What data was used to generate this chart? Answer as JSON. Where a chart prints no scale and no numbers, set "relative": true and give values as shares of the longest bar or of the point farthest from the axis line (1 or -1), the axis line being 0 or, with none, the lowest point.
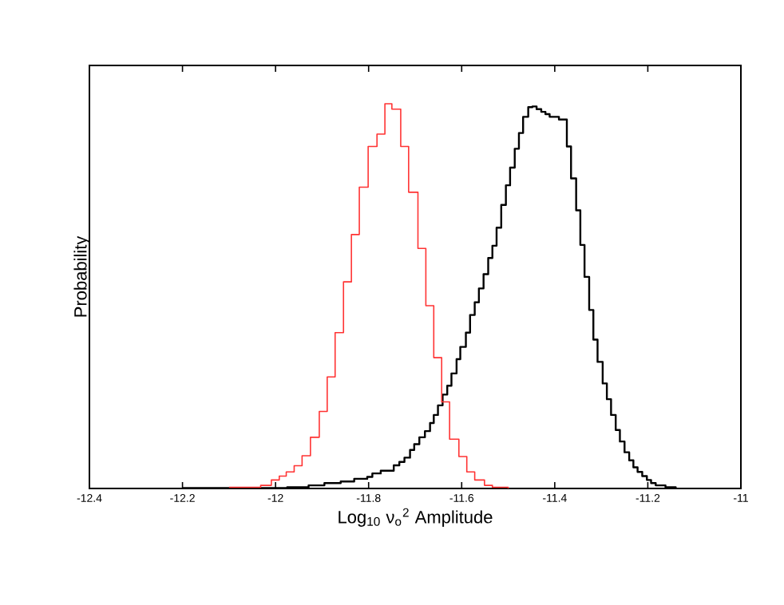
{
  "chart_data": {
    "type": "step",
    "relative": true,
    "xlabel": "Log$_{10}$ ν$_{o}$$^{2}$ Amplitude",
    "ylabel": "Probability",
    "xlim": [
      -12.4,
      -11
    ],
    "xticks": [
      -12.4,
      -12.2,
      -12,
      -11.8,
      -11.6,
      -11.4,
      -11.2,
      -11
    ],
    "tick_labels": "x",
    "series": [
      {
        "color": "#ff3333",
        "x": [
          -12.1,
          -12.032,
          -12.009,
          -11.992,
          -11.977,
          -11.96,
          -11.943,
          -11.925,
          -11.906,
          -11.889,
          -11.872,
          -11.854,
          -11.837,
          -11.82,
          -11.801,
          -11.782,
          -11.765,
          -11.75,
          -11.731,
          -11.714,
          -11.694,
          -11.677,
          -11.66,
          -11.643,
          -11.626,
          -11.606,
          -11.589,
          -11.572,
          -11.551,
          -11.534,
          -11.5
        ],
        "values": [
          0.003,
          0.008,
          0.022,
          0.032,
          0.043,
          0.059,
          0.085,
          0.133,
          0.2,
          0.29,
          0.405,
          0.537,
          0.66,
          0.783,
          0.889,
          0.921,
          1.0,
          0.986,
          0.889,
          0.77,
          0.624,
          0.475,
          0.34,
          0.225,
          0.128,
          0.083,
          0.043,
          0.022,
          0.008,
          0.003,
          0
        ]
      },
      {
        "color": "#000000",
        "x": [
          -12.2,
          -11.975,
          -11.929,
          -11.895,
          -11.86,
          -11.831,
          -11.803,
          -11.792,
          -11.774,
          -11.746,
          -11.734,
          -11.723,
          -11.711,
          -11.702,
          -11.691,
          -11.679,
          -11.668,
          -11.66,
          -11.651,
          -11.641,
          -11.631,
          -11.622,
          -11.611,
          -11.603,
          -11.591,
          -11.582,
          -11.572,
          -11.563,
          -11.553,
          -11.543,
          -11.534,
          -11.525,
          -11.515,
          -11.505,
          -11.496,
          -11.486,
          -11.477,
          -11.468,
          -11.457,
          -11.448,
          -11.439,
          -11.429,
          -11.42,
          -11.411,
          -11.391,
          -11.374,
          -11.365,
          -11.354,
          -11.345,
          -11.336,
          -11.326,
          -11.317,
          -11.308,
          -11.297,
          -11.288,
          -11.279,
          -11.269,
          -11.26,
          -11.25,
          -11.24,
          -11.231,
          -11.222,
          -11.212,
          -11.202,
          -11.193,
          -11.183,
          -11.162,
          -11.14
        ],
        "values": [
          0.001,
          0.003,
          0.008,
          0.014,
          0.018,
          0.025,
          0.03,
          0.039,
          0.046,
          0.06,
          0.069,
          0.08,
          0.1,
          0.115,
          0.133,
          0.149,
          0.17,
          0.191,
          0.216,
          0.244,
          0.267,
          0.299,
          0.336,
          0.368,
          0.405,
          0.451,
          0.484,
          0.52,
          0.557,
          0.599,
          0.631,
          0.678,
          0.737,
          0.788,
          0.834,
          0.883,
          0.924,
          0.966,
          0.991,
          0.993,
          0.986,
          0.979,
          0.973,
          0.966,
          0.959,
          0.889,
          0.806,
          0.723,
          0.633,
          0.55,
          0.464,
          0.387,
          0.329,
          0.273,
          0.232,
          0.191,
          0.152,
          0.122,
          0.094,
          0.073,
          0.055,
          0.043,
          0.032,
          0.022,
          0.014,
          0.008,
          0.003,
          0
        ]
      }
    ]
  }
}
